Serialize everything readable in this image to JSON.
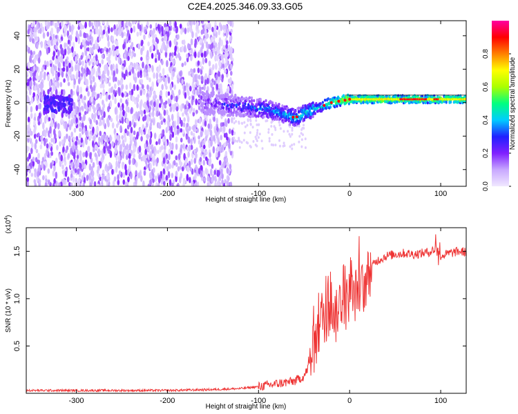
{
  "title": "C2E4.2025.346.09.33.G05",
  "chart_data": [
    {
      "type": "heatmap",
      "title": "C2E4.2025.346.09.33.G05",
      "xlabel": "Height of straight line (km)",
      "ylabel": "Frequency (Hz)",
      "xlim": [
        -355,
        128
      ],
      "ylim": [
        -50,
        49
      ],
      "x_ticks": [
        -300,
        -200,
        -100,
        0,
        100
      ],
      "y_ticks": [
        -40,
        -20,
        0,
        20,
        40
      ],
      "colorbar": {
        "label": "Normalized spectral amplitude",
        "range": [
          0.0,
          1.0
        ],
        "ticks": [
          0.0,
          0.2,
          0.4,
          0.6,
          0.8
        ],
        "colors": [
          "#f0e8ff",
          "#c8a8ff",
          "#8020ff",
          "#2020ff",
          "#00ccff",
          "#00ff80",
          "#aaff00",
          "#ffff00",
          "#ff8000",
          "#ff0000",
          "#ff00a0"
        ]
      },
      "description_points": {
        "noise_region": [
          -355,
          -128
        ],
        "signal_track": [
          {
            "x": -160,
            "f": 0
          },
          {
            "x": -120,
            "f": -2
          },
          {
            "x": -90,
            "f": -4
          },
          {
            "x": -60,
            "f": -9
          },
          {
            "x": -40,
            "f": -4
          },
          {
            "x": -20,
            "f": 0
          },
          {
            "x": 0,
            "f": 2
          },
          {
            "x": 50,
            "f": 2
          },
          {
            "x": 100,
            "f": 2
          },
          {
            "x": 128,
            "f": 2
          }
        ]
      }
    },
    {
      "type": "line",
      "xlabel": "Height of straight line (km)",
      "ylabel": "SNR (10 * v/v)",
      "y_multiplier": "(x10",
      "y_multiplier_exp": "4",
      "y_multiplier_close": ")",
      "xlim": [
        -355,
        128
      ],
      "ylim": [
        0,
        1.75
      ],
      "x_ticks": [
        -300,
        -200,
        -100,
        0,
        100
      ],
      "y_ticks": [
        0.5,
        1.0,
        1.5
      ],
      "y_tick_labels": [
        "0.5",
        "1.0",
        "1.5"
      ],
      "color": "#ee3333",
      "series": [
        {
          "name": "SNR",
          "x": [
            -355,
            -300,
            -250,
            -200,
            -150,
            -120,
            -100,
            -80,
            -60,
            -50,
            -45,
            -40,
            -35,
            -30,
            -25,
            -20,
            -15,
            -10,
            -5,
            0,
            5,
            10,
            15,
            20,
            25,
            30,
            40,
            50,
            60,
            70,
            80,
            90,
            95,
            100,
            110,
            120,
            128
          ],
          "y": [
            0.03,
            0.03,
            0.03,
            0.03,
            0.04,
            0.05,
            0.07,
            0.1,
            0.13,
            0.18,
            0.28,
            0.45,
            0.6,
            0.85,
            0.75,
            0.95,
            0.8,
            1.0,
            0.9,
            1.05,
            1.0,
            1.15,
            1.1,
            1.25,
            1.35,
            1.4,
            1.45,
            1.47,
            1.48,
            1.47,
            1.48,
            1.5,
            1.55,
            1.45,
            1.48,
            1.5,
            1.49
          ]
        }
      ]
    }
  ]
}
